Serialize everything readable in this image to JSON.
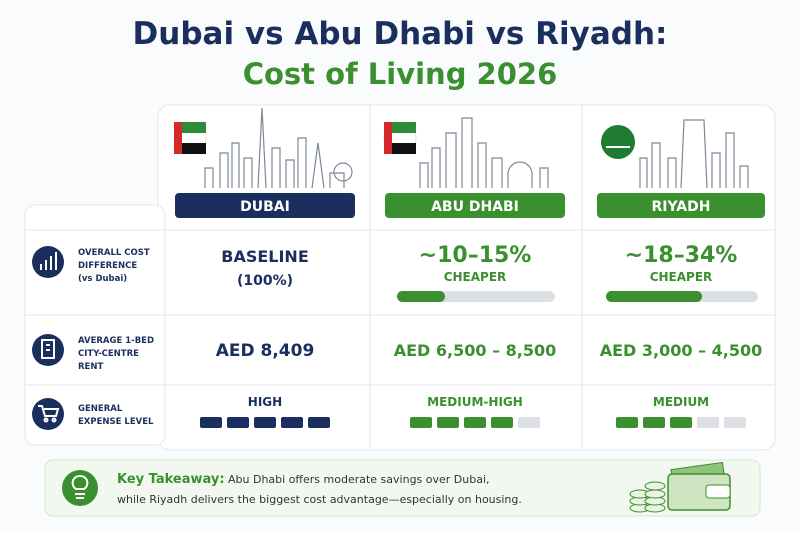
{
  "header": {
    "title": "Dubai vs Abu Dhabi vs Riyadh:",
    "subtitle": "Cost of Living 2026"
  },
  "columns": [
    "DUBAI",
    "ABU DHABI",
    "RIYADH"
  ],
  "rows": [
    {
      "label": [
        "OVERALL COST",
        "DIFFERENCE",
        "(vs Dubai)"
      ],
      "cells": [
        {
          "main": "BASELINE",
          "sub": "(100%)"
        },
        {
          "main": "~10–15%",
          "sub": "CHEAPER"
        },
        {
          "main": "~18–34%",
          "sub": "CHEAPER"
        }
      ]
    },
    {
      "label": [
        "AVERAGE 1-BED",
        "CITY-CENTRE",
        "RENT"
      ],
      "cells": [
        "AED 8,409",
        "AED 6,500 – 8,500",
        "AED 3,000 – 4,500"
      ]
    },
    {
      "label": [
        "GENERAL",
        "EXPENSE LEVEL"
      ],
      "cells": [
        "HIGH",
        "MEDIUM-HIGH",
        "MEDIUM"
      ],
      "levels": [
        5,
        4,
        3
      ]
    }
  ],
  "takeaway": {
    "heading": "Key Takeaway:",
    "text": [
      "Abu Dhabi offers moderate savings over Dubai,",
      "while Riyadh delivers the biggest cost advantage—especially on housing."
    ]
  }
}
